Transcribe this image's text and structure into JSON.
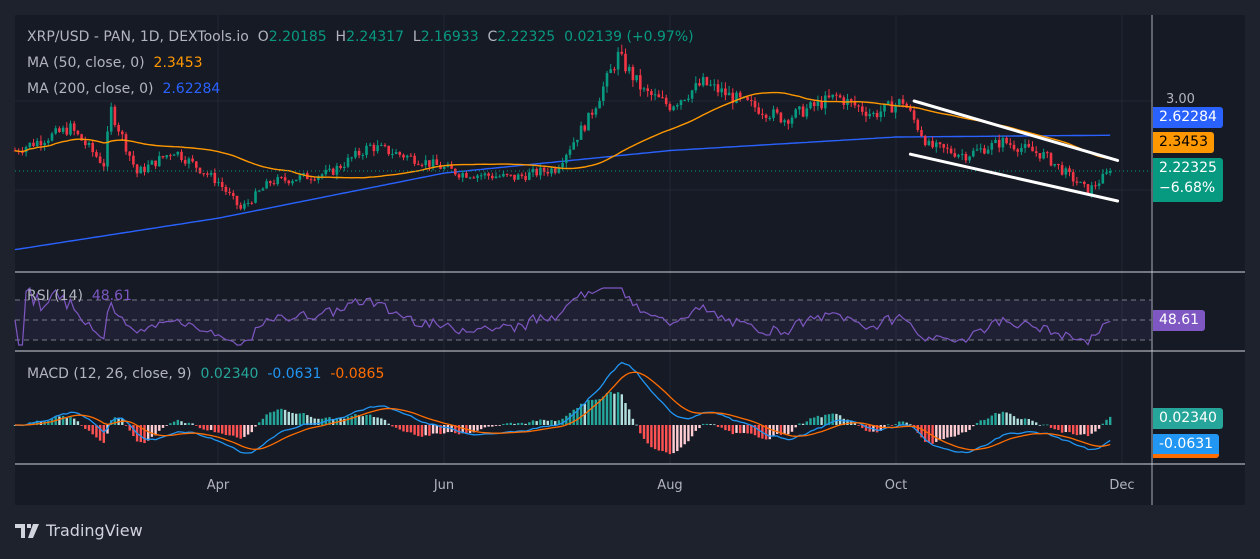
{
  "header": {
    "symbol": "XRP/USD - PAN, 1D, DEXTools.io",
    "o_label": "O",
    "open": "2.20185",
    "h_label": "H",
    "high": "2.24317",
    "l_label": "L",
    "low": "2.16933",
    "c_label": "C",
    "close": "2.22325",
    "change": "0.02139 (+0.97%)"
  },
  "ma50": {
    "label": "MA (50, close, 0)",
    "value": "2.3453",
    "color": "#ff9800"
  },
  "ma200": {
    "label": "MA (200, close, 0)",
    "value": "2.62284",
    "color": "#2962ff"
  },
  "rsi": {
    "label": "RSI (14)",
    "value": "48.61",
    "color": "#7e57c2"
  },
  "macd": {
    "label": "MACD (12, 26, close, 9)",
    "hist": "0.02340",
    "macd": "-0.0631",
    "signal": "-0.0865"
  },
  "price_axis": {
    "tick": "3.00",
    "ma200_tag": "2.62284",
    "ma50_tag": "2.3453",
    "price_tag": "2.22325",
    "change_tag": "−6.68%",
    "rsi_tag": "48.61",
    "hist_tag": "0.02340",
    "macd_tag": "-0.0631"
  },
  "time_axis": [
    "Apr",
    "Jun",
    "Aug",
    "Oct",
    "Dec"
  ],
  "brand": "TradingView",
  "chart_data": {
    "type": "candlestick",
    "title": "XRP/USD - PAN, 1D, DEXTools.io",
    "ylim": [
      1.3,
      3.7
    ],
    "grid": true,
    "colors": {
      "up": "#089981",
      "down": "#f23645",
      "ma50": "#ff9800",
      "ma200": "#2962ff",
      "rsi": "#7e57c2",
      "macd": "#2196f3",
      "signal": "#ff6d00"
    },
    "close_keypoints": [
      [
        "2025-02-05",
        2.45
      ],
      [
        "2025-02-20",
        2.7
      ],
      [
        "2025-03-01",
        2.3
      ],
      [
        "2025-03-03",
        2.9
      ],
      [
        "2025-03-10",
        2.2
      ],
      [
        "2025-03-20",
        2.45
      ],
      [
        "2025-04-01",
        2.1
      ],
      [
        "2025-04-07",
        1.8
      ],
      [
        "2025-04-15",
        2.1
      ],
      [
        "2025-05-01",
        2.2
      ],
      [
        "2025-05-12",
        2.5
      ],
      [
        "2025-05-25",
        2.35
      ],
      [
        "2025-06-05",
        2.2
      ],
      [
        "2025-06-20",
        2.15
      ],
      [
        "2025-07-01",
        2.25
      ],
      [
        "2025-07-10",
        2.8
      ],
      [
        "2025-07-18",
        3.5
      ],
      [
        "2025-07-25",
        3.1
      ],
      [
        "2025-08-01",
        2.95
      ],
      [
        "2025-08-10",
        3.2
      ],
      [
        "2025-08-20",
        3.0
      ],
      [
        "2025-09-01",
        2.8
      ],
      [
        "2025-09-15",
        3.05
      ],
      [
        "2025-09-25",
        2.85
      ],
      [
        "2025-10-03",
        3.0
      ],
      [
        "2025-10-10",
        2.5
      ],
      [
        "2025-10-20",
        2.4
      ],
      [
        "2025-10-30",
        2.55
      ],
      [
        "2025-11-10",
        2.4
      ],
      [
        "2025-11-22",
        2.0
      ],
      [
        "2025-11-28",
        2.22
      ]
    ],
    "ma200_keypoints": [
      [
        "2025-02-05",
        1.35
      ],
      [
        "2025-04-01",
        1.7
      ],
      [
        "2025-06-01",
        2.2
      ],
      [
        "2025-08-01",
        2.45
      ],
      [
        "2025-10-01",
        2.6
      ],
      [
        "2025-11-28",
        2.62
      ]
    ],
    "trendlines": [
      {
        "from": [
          "2025-10-06",
          3.0
        ],
        "to": [
          "2025-11-30",
          2.34
        ],
        "color": "#ffffff"
      },
      {
        "from": [
          "2025-10-05",
          2.41
        ],
        "to": [
          "2025-11-30",
          1.89
        ],
        "color": "#ffffff"
      }
    ],
    "rsi_bands": [
      70,
      50,
      30
    ],
    "last": {
      "close": 2.22325,
      "ma50": 2.3453,
      "ma200": 2.62284,
      "rsi": 48.61,
      "macd": -0.0631,
      "signal": -0.0865,
      "hist": 0.0234
    }
  }
}
